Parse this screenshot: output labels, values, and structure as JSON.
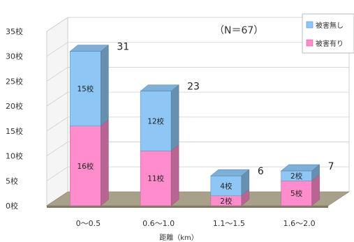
{
  "chart_data": {
    "type": "bar",
    "stacked": true,
    "three_d": true,
    "categories": [
      "0〜0.5",
      "0.6〜1.0",
      "1.1〜1.5",
      "1.6〜2.0"
    ],
    "series": [
      {
        "name": "被害有り",
        "values": [
          16,
          11,
          2,
          5
        ],
        "labels": [
          "16校",
          "11校",
          "2校",
          "5校"
        ],
        "color": "#ff8ccc"
      },
      {
        "name": "被害無し",
        "values": [
          15,
          12,
          4,
          2
        ],
        "labels": [
          "15校",
          "12校",
          "4校",
          "2校"
        ],
        "color": "#8ec7f5"
      }
    ],
    "totals": [
      31,
      23,
      6,
      7
    ],
    "total_labels": [
      "31",
      "23",
      "6",
      "7"
    ],
    "y_ticks": [
      "0校",
      "5校",
      "10校",
      "15校",
      "20校",
      "25校",
      "30校",
      "35校"
    ],
    "ylim": [
      0,
      35
    ],
    "xlabel": "距離（km）",
    "annotation": "（N＝67）",
    "legend_position": "top-right",
    "floor_color": "#a8a088"
  }
}
